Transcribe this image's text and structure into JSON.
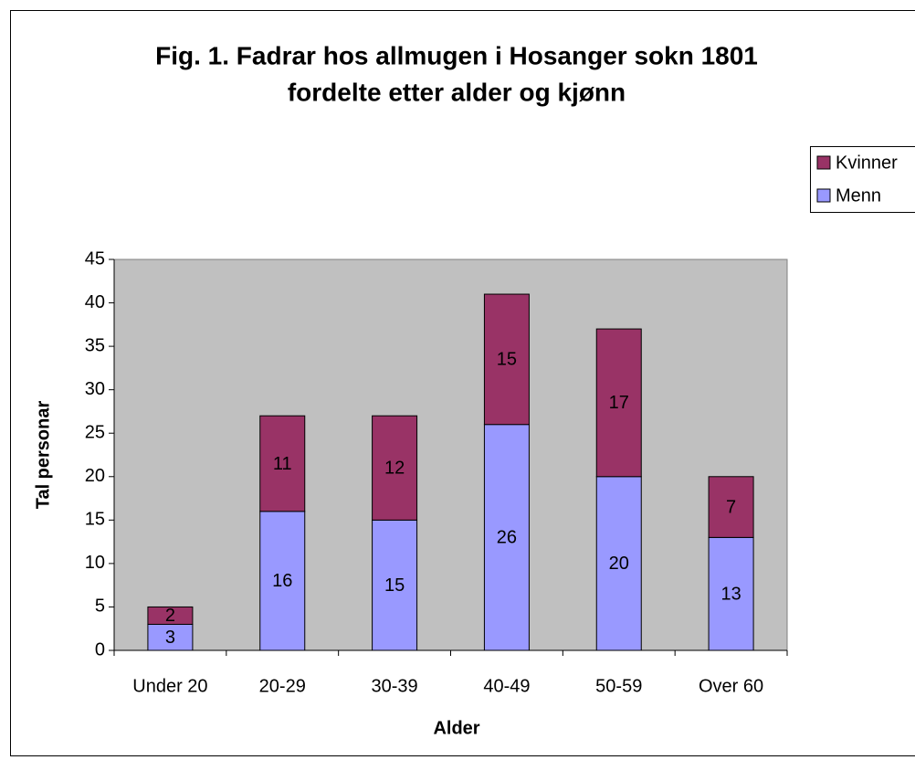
{
  "chart_data": {
    "type": "stacked_bar",
    "title": [
      "Fig. 1. Fadrar hos allmugen i Hosanger sokn 1801",
      "fordelte etter alder og kjønn"
    ],
    "x_label": "Alder",
    "y_label": "Tal personar",
    "categories": [
      "Under 20",
      "20-29",
      "30-39",
      "40-49",
      "50-59",
      "Over 60"
    ],
    "series": [
      {
        "name": "Menn",
        "color": "#9999ff",
        "values": [
          3,
          16,
          15,
          26,
          20,
          13
        ]
      },
      {
        "name": "Kvinner",
        "color": "#993366",
        "values": [
          2,
          11,
          12,
          15,
          17,
          7
        ]
      }
    ],
    "ylim": [
      0,
      45
    ],
    "yticks": [
      0,
      5,
      10,
      15,
      20,
      25,
      30,
      35,
      40,
      45
    ],
    "legend": "right",
    "plot_background": "#c0c0c0"
  }
}
